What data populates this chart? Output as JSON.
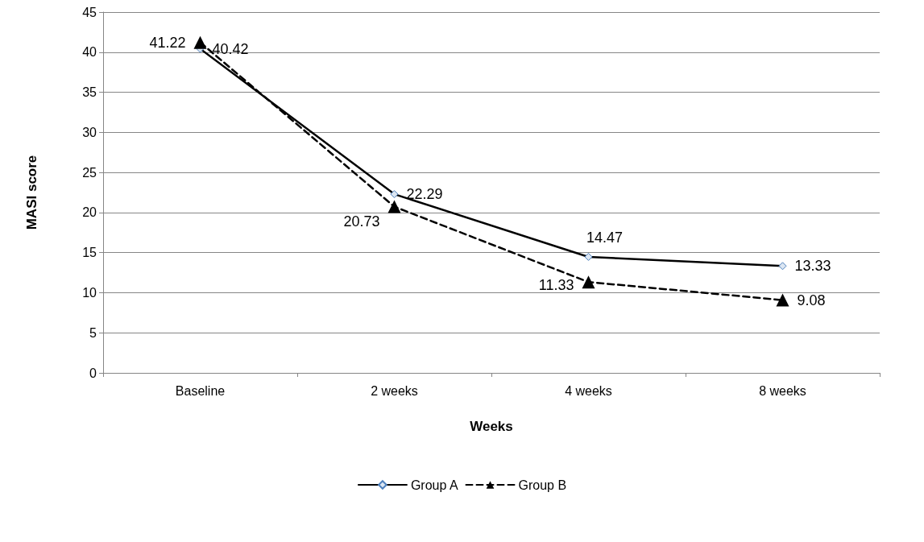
{
  "chart_data": {
    "type": "line",
    "xlabel": "Weeks",
    "ylabel": "MASI score",
    "categories": [
      "Baseline",
      "2 weeks",
      "4 weeks",
      "8 weeks"
    ],
    "series": [
      {
        "name": "Group A",
        "color": "#000000",
        "values": [
          40.42,
          22.29,
          14.47,
          13.33
        ],
        "marker": "diamond",
        "line_style": "solid"
      },
      {
        "name": "Group B",
        "color": "#000000",
        "values": [
          41.22,
          20.73,
          11.33,
          9.08
        ],
        "marker": "triangle",
        "line_style": "dashed"
      }
    ],
    "ylim": [
      0,
      45
    ],
    "yticks": [
      0,
      5,
      10,
      15,
      20,
      25,
      30,
      35,
      40,
      45
    ],
    "grid": "y",
    "legend": "bottom",
    "data_labels": true
  }
}
